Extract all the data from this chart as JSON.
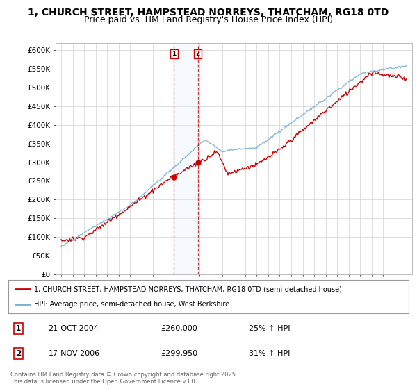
{
  "title": "1, CHURCH STREET, HAMPSTEAD NORREYS, THATCHAM, RG18 0TD",
  "subtitle": "Price paid vs. HM Land Registry's House Price Index (HPI)",
  "legend_line1": "1, CHURCH STREET, HAMPSTEAD NORREYS, THATCHAM, RG18 0TD (semi-detached house)",
  "legend_line2": "HPI: Average price, semi-detached house, West Berkshire",
  "footer": "Contains HM Land Registry data © Crown copyright and database right 2025.\nThis data is licensed under the Open Government Licence v3.0.",
  "sale1_date": "21-OCT-2004",
  "sale1_price": "£260,000",
  "sale1_hpi": "25% ↑ HPI",
  "sale2_date": "17-NOV-2006",
  "sale2_price": "£299,950",
  "sale2_hpi": "31% ↑ HPI",
  "sale1_x": 2004.8,
  "sale1_y": 260000,
  "sale2_x": 2006.88,
  "sale2_y": 299950,
  "ylim": [
    0,
    620000
  ],
  "xlim": [
    1994.5,
    2025.5
  ],
  "red_color": "#cc0000",
  "blue_color": "#7bafd4",
  "shade_color": "#ddeeff",
  "background_color": "#ffffff",
  "grid_color": "#dddddd",
  "title_fontsize": 10,
  "subtitle_fontsize": 9,
  "tick_fontsize": 7.5
}
